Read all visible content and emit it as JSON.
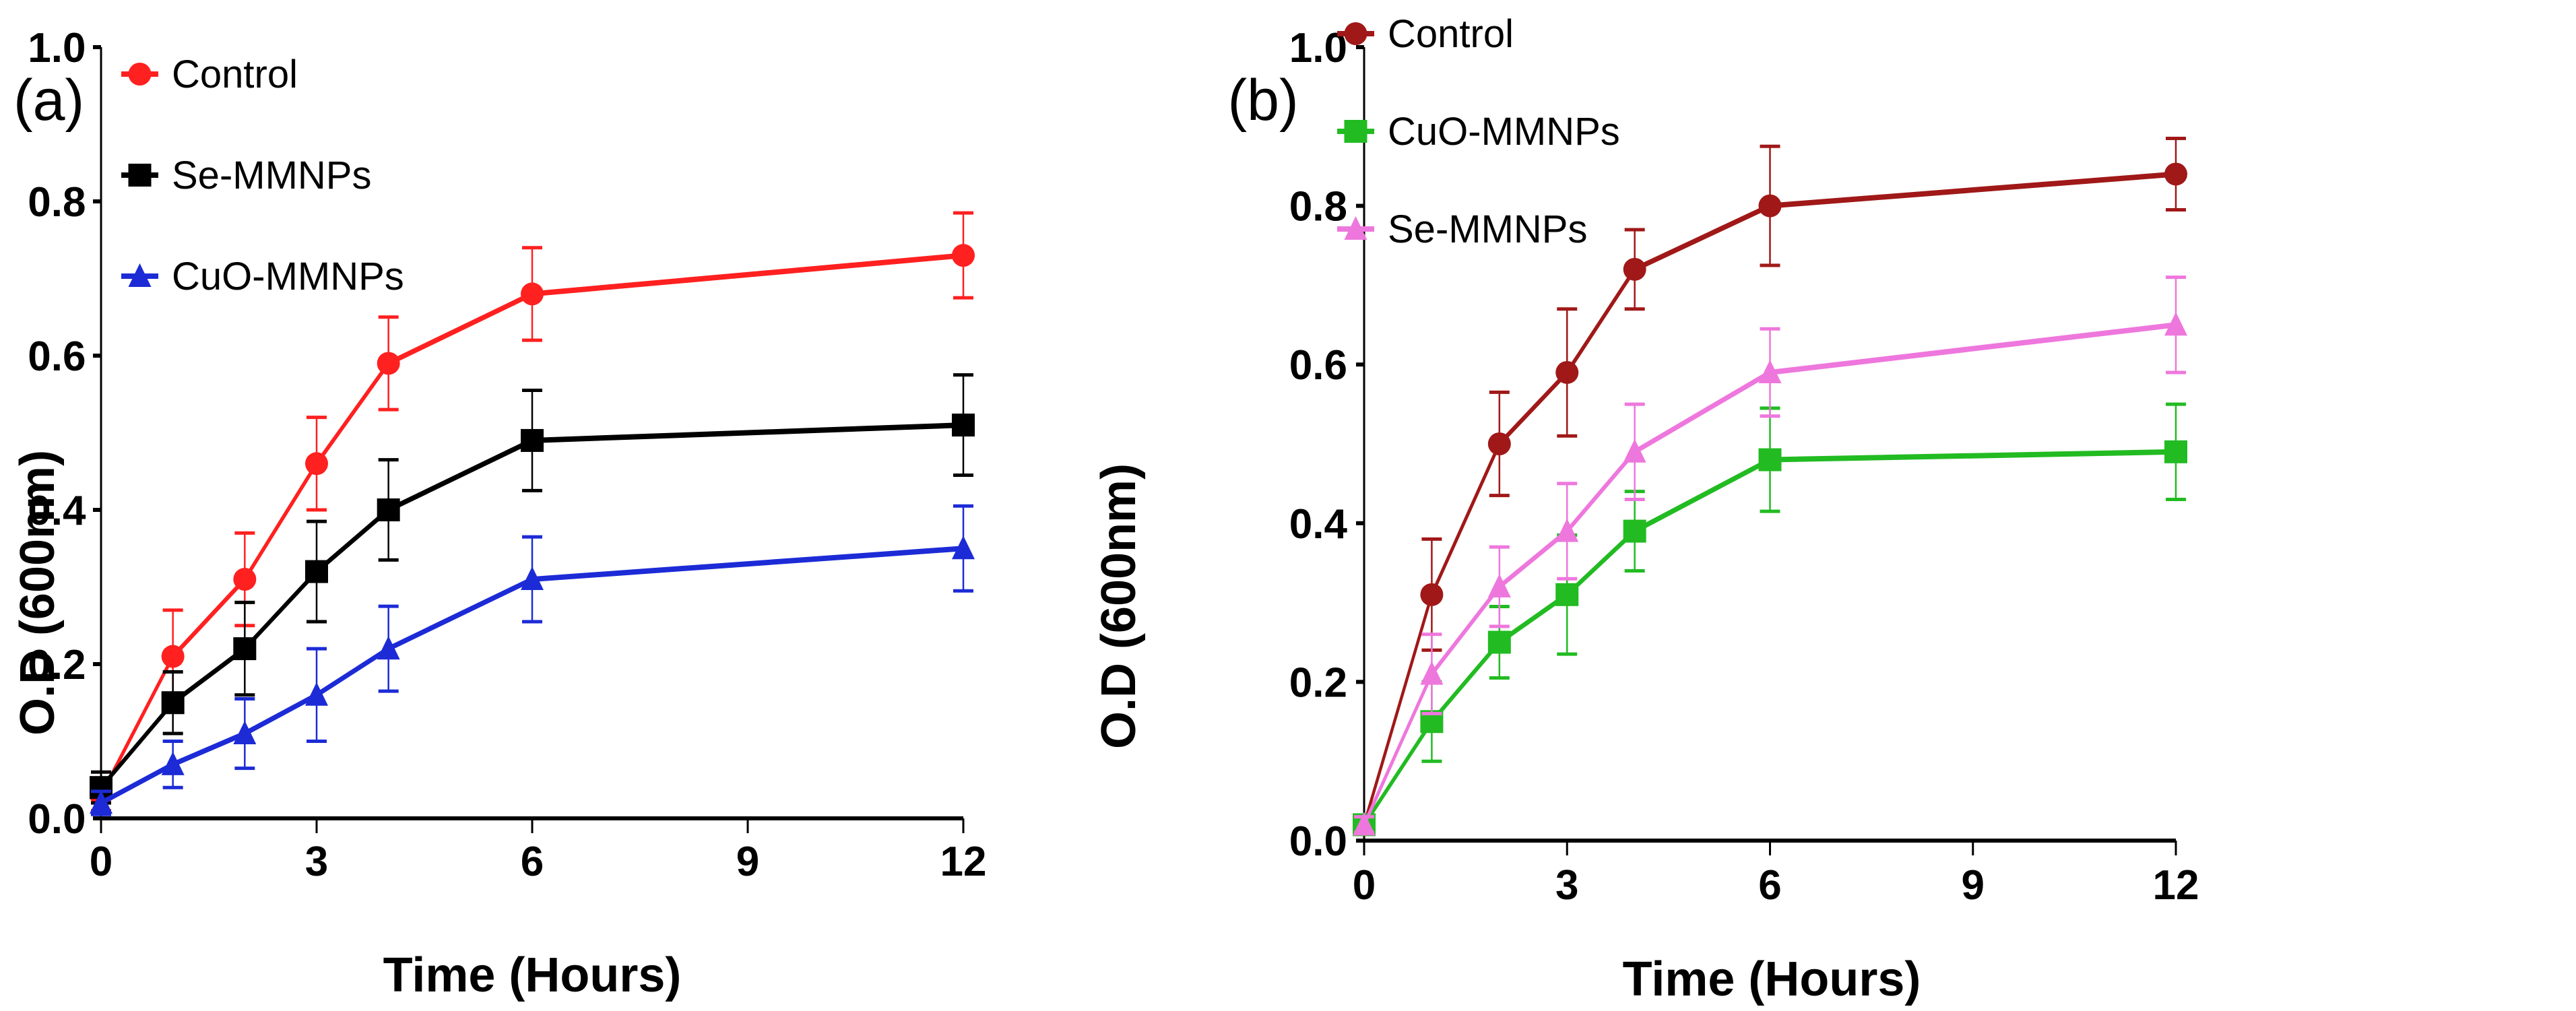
{
  "chart_data": [
    {
      "panel_label": "(a)",
      "type": "line",
      "xlabel": "Time (Hours)",
      "ylabel": "O.D (600nm)",
      "xlim": [
        0,
        12
      ],
      "ylim": [
        0,
        1.0
      ],
      "x_ticks": [
        0,
        3,
        6,
        9,
        12
      ],
      "x_tick_labels": [
        "0",
        "3",
        "6",
        "9",
        "12"
      ],
      "y_ticks": [
        0.0,
        0.2,
        0.4,
        0.6,
        0.8,
        1.0
      ],
      "y_tick_labels": [
        "0.0",
        "0.2",
        "0.4",
        "0.6",
        "0.8",
        "1.0"
      ],
      "legend_position": "top-left",
      "x": [
        0,
        1,
        2,
        3,
        4,
        6,
        12
      ],
      "series": [
        {
          "name": "Control",
          "color": "#ff2020",
          "marker": "circle",
          "values": [
            0.03,
            0.21,
            0.31,
            0.46,
            0.59,
            0.68,
            0.73
          ],
          "errors": [
            0.02,
            0.06,
            0.06,
            0.06,
            0.06,
            0.06,
            0.055
          ]
        },
        {
          "name": "Se-MMNPs",
          "color": "#000000",
          "marker": "square",
          "values": [
            0.04,
            0.15,
            0.22,
            0.32,
            0.4,
            0.49,
            0.51
          ],
          "errors": [
            0.02,
            0.04,
            0.06,
            0.065,
            0.065,
            0.065,
            0.065
          ]
        },
        {
          "name": "CuO-MMNPs",
          "color": "#1c2bd6",
          "marker": "triangle",
          "values": [
            0.02,
            0.07,
            0.11,
            0.16,
            0.22,
            0.31,
            0.35
          ],
          "errors": [
            0.015,
            0.03,
            0.045,
            0.06,
            0.055,
            0.055,
            0.055
          ]
        }
      ]
    },
    {
      "panel_label": "(b)",
      "type": "line",
      "xlabel": "Time (Hours)",
      "ylabel": "O.D (600nm)",
      "xlim": [
        0,
        12
      ],
      "ylim": [
        0,
        1.0
      ],
      "x_ticks": [
        0,
        3,
        6,
        9,
        12
      ],
      "x_tick_labels": [
        "0",
        "3",
        "6",
        "9",
        "12"
      ],
      "y_ticks": [
        0.0,
        0.2,
        0.4,
        0.6,
        0.8,
        1.0
      ],
      "y_tick_labels": [
        "0.0",
        "0.2",
        "0.4",
        "0.6",
        "0.8",
        "1.0"
      ],
      "legend_position": "top-left",
      "x": [
        0,
        1,
        2,
        3,
        4,
        6,
        12
      ],
      "series": [
        {
          "name": "Control",
          "color": "#a01818",
          "marker": "circle",
          "values": [
            0.02,
            0.31,
            0.5,
            0.59,
            0.72,
            0.8,
            0.84
          ],
          "errors": [
            0.01,
            0.07,
            0.065,
            0.08,
            0.05,
            0.075,
            0.045
          ]
        },
        {
          "name": "CuO-MMNPs",
          "color": "#22bb22",
          "marker": "square",
          "values": [
            0.02,
            0.15,
            0.25,
            0.31,
            0.39,
            0.48,
            0.49
          ],
          "errors": [
            0.01,
            0.05,
            0.045,
            0.075,
            0.05,
            0.065,
            0.06
          ]
        },
        {
          "name": "Se-MMNPs",
          "color": "#ee77dd",
          "marker": "triangle",
          "values": [
            0.02,
            0.21,
            0.32,
            0.39,
            0.49,
            0.59,
            0.65
          ],
          "errors": [
            0.01,
            0.05,
            0.05,
            0.06,
            0.06,
            0.055,
            0.06
          ]
        }
      ]
    }
  ]
}
